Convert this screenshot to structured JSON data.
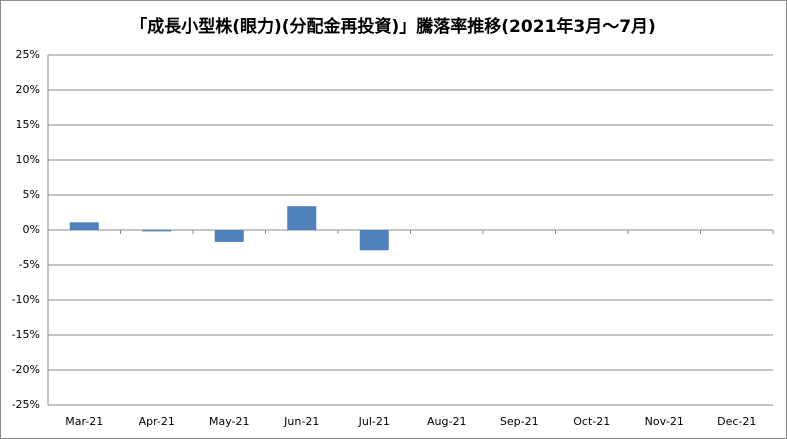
{
  "chart_data": {
    "type": "bar",
    "title": "「成長小型株(眼力)(分配金再投資)」騰落率推移(2021年3月～7月)",
    "categories": [
      "Mar-21",
      "Apr-21",
      "May-21",
      "Jun-21",
      "Jul-21",
      "Aug-21",
      "Sep-21",
      "Oct-21",
      "Nov-21",
      "Dec-21"
    ],
    "values": [
      1.1,
      -0.2,
      -1.7,
      3.4,
      -2.9,
      null,
      null,
      null,
      null,
      null
    ],
    "color": "#4f81bd",
    "ylim": [
      -25,
      25
    ],
    "yticks": [
      {
        "value": -25,
        "label": "-25%"
      },
      {
        "value": -20,
        "label": "-20%"
      },
      {
        "value": -15,
        "label": "-15%"
      },
      {
        "value": -10,
        "label": "-10%"
      },
      {
        "value": -5,
        "label": "-5%"
      },
      {
        "value": 0,
        "label": "0%"
      },
      {
        "value": 5,
        "label": "5%"
      },
      {
        "value": 10,
        "label": "10%"
      },
      {
        "value": 15,
        "label": "15%"
      },
      {
        "value": 20,
        "label": "20%"
      },
      {
        "value": 25,
        "label": "25%"
      }
    ],
    "grid": true
  }
}
